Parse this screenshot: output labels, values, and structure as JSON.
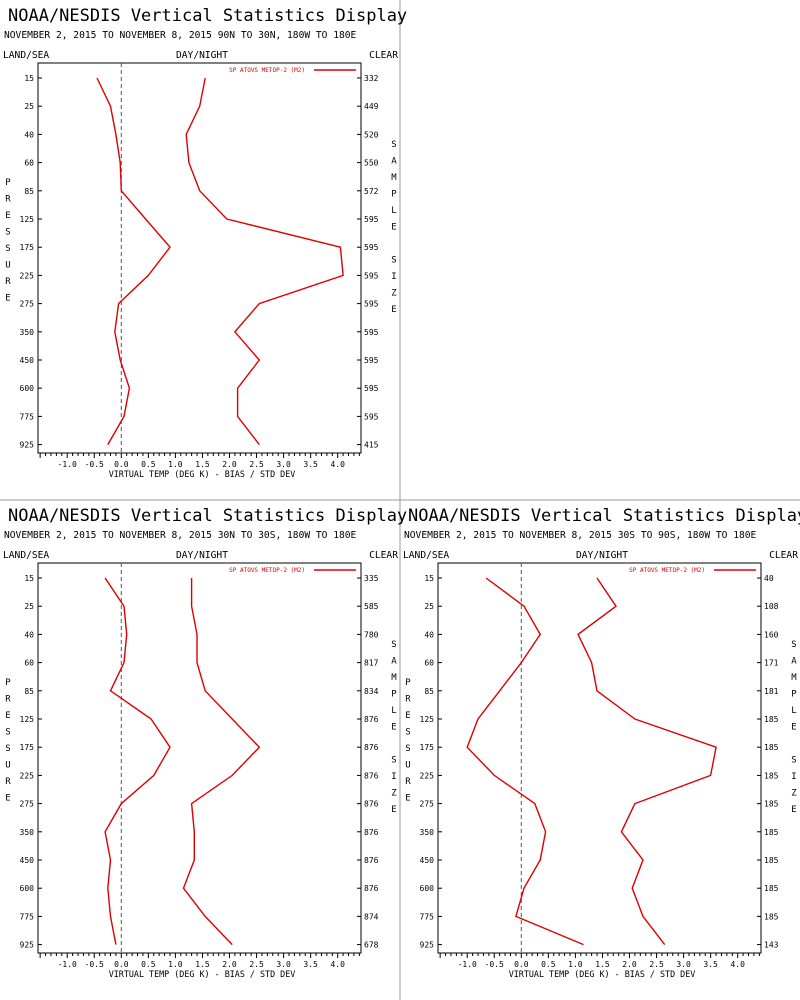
{
  "page": {
    "background": "#ffffff",
    "divider_color": "#999999"
  },
  "chart_data": [
    {
      "type": "line",
      "title": "NOAA/NESDIS Vertical Statistics Display",
      "subtitle": "NOVEMBER 2, 2015 TO NOVEMBER 8, 2015  90N TO 30N, 180W TO 180E",
      "label_left": "LAND/SEA",
      "label_center": "DAY/NIGHT",
      "label_right": "CLEAR",
      "ylabel": "PRESSURE",
      "ylabel2": "SAMPLE SIZE",
      "xlabel": "VIRTUAL TEMP (DEG K) - BIAS / STD DEV",
      "xlim": [
        -1.5,
        4.5
      ],
      "xticks": [
        "-1.0",
        "-0.5",
        "0.0",
        "0.5",
        "1.0",
        "1.5",
        "2.0",
        "2.5",
        "3.0",
        "3.5",
        "4.0"
      ],
      "y_levels": [
        "15",
        "25",
        "40",
        "60",
        "85",
        "125",
        "175",
        "225",
        "275",
        "350",
        "450",
        "600",
        "775",
        "925"
      ],
      "sample_sizes": [
        "332",
        "449",
        "520",
        "550",
        "572",
        "595",
        "595",
        "595",
        "595",
        "595",
        "595",
        "595",
        "595",
        "415"
      ],
      "legend": {
        "label": "SP ATOVS METOP-2 (M2)",
        "color": "#dd0000"
      },
      "series": [
        {
          "values": [
            -0.45,
            -0.2,
            -0.1,
            -0.02,
            0.0,
            0.45,
            0.9,
            0.5,
            -0.05,
            -0.12,
            -0.02,
            0.15,
            0.05,
            -0.25
          ],
          "color": "#dd0000"
        },
        {
          "values": [
            1.55,
            1.45,
            1.2,
            1.25,
            1.45,
            1.95,
            4.05,
            4.1,
            2.55,
            2.1,
            2.55,
            2.15,
            2.15,
            2.55
          ],
          "color": "#dd0000"
        }
      ]
    },
    {
      "type": "line",
      "title": "NOAA/NESDIS Vertical Statistics Display",
      "subtitle": "NOVEMBER 2, 2015 TO NOVEMBER 8, 2015  30N TO 30S, 180W TO 180E",
      "label_left": "LAND/SEA",
      "label_center": "DAY/NIGHT",
      "label_right": "CLEAR",
      "ylabel": "PRESSURE",
      "ylabel2": "SAMPLE SIZE",
      "xlabel": "VIRTUAL TEMP (DEG K) - BIAS / STD DEV",
      "xlim": [
        -1.5,
        4.5
      ],
      "xticks": [
        "-1.0",
        "-0.5",
        "0.0",
        "0.5",
        "1.0",
        "1.5",
        "2.0",
        "2.5",
        "3.0",
        "3.5",
        "4.0"
      ],
      "y_levels": [
        "15",
        "25",
        "40",
        "60",
        "85",
        "125",
        "175",
        "225",
        "275",
        "350",
        "450",
        "600",
        "775",
        "925"
      ],
      "sample_sizes": [
        "335",
        "585",
        "780",
        "817",
        "834",
        "876",
        "876",
        "876",
        "876",
        "876",
        "876",
        "876",
        "874",
        "678"
      ],
      "legend": {
        "label": "SP ATOVS METOP-2 (M2)",
        "color": "#dd0000"
      },
      "series": [
        {
          "values": [
            -0.3,
            0.05,
            0.1,
            0.05,
            -0.2,
            0.55,
            0.9,
            0.6,
            0.0,
            -0.3,
            -0.2,
            -0.25,
            -0.2,
            -0.1
          ],
          "color": "#dd0000"
        },
        {
          "values": [
            1.3,
            1.3,
            1.4,
            1.4,
            1.55,
            2.05,
            2.55,
            2.05,
            1.3,
            1.35,
            1.35,
            1.15,
            1.55,
            2.05
          ],
          "color": "#dd0000"
        }
      ]
    },
    {
      "type": "line",
      "title": "NOAA/NESDIS Vertical Statistics Display",
      "subtitle": "NOVEMBER 2, 2015 TO NOVEMBER 8, 2015  30S TO 90S, 180W TO 180E",
      "label_left": "LAND/SEA",
      "label_center": "DAY/NIGHT",
      "label_right": "CLEAR",
      "ylabel": "PRESSURE",
      "ylabel2": "SAMPLE SIZE",
      "xlabel": "VIRTUAL TEMP (DEG K) - BIAS / STD DEV",
      "xlim": [
        -1.5,
        4.5
      ],
      "xticks": [
        "-1.0",
        "-0.5",
        "0.0",
        "0.5",
        "1.0",
        "1.5",
        "2.0",
        "2.5",
        "3.0",
        "3.5",
        "4.0"
      ],
      "y_levels": [
        "15",
        "25",
        "40",
        "60",
        "85",
        "125",
        "175",
        "225",
        "275",
        "350",
        "450",
        "600",
        "775",
        "925"
      ],
      "sample_sizes": [
        "40",
        "108",
        "160",
        "171",
        "181",
        "185",
        "185",
        "185",
        "185",
        "185",
        "185",
        "185",
        "185",
        "143"
      ],
      "legend": {
        "label": "SP ATOVS METOP-2 (M2)",
        "color": "#dd0000"
      },
      "series": [
        {
          "values": [
            -0.65,
            0.05,
            0.35,
            0.0,
            -0.4,
            -0.8,
            -1.0,
            -0.5,
            0.25,
            0.45,
            0.35,
            0.05,
            -0.1,
            1.15
          ],
          "color": "#dd0000"
        },
        {
          "values": [
            1.4,
            1.75,
            1.05,
            1.3,
            1.4,
            2.1,
            3.6,
            3.5,
            2.1,
            1.85,
            2.25,
            2.05,
            2.25,
            2.65
          ],
          "color": "#dd0000"
        }
      ]
    }
  ]
}
